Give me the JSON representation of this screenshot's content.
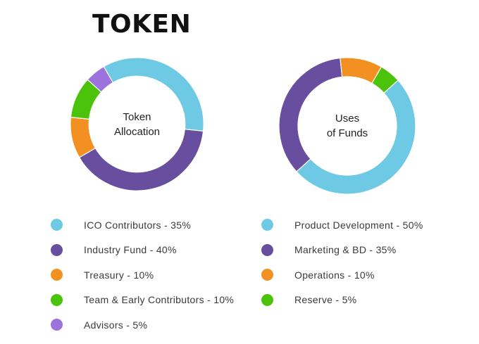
{
  "page": {
    "title": "TOKEN"
  },
  "chart_data": [
    {
      "type": "pie",
      "variant": "donut",
      "center_label": [
        "Token",
        "Allocation"
      ],
      "start_angle_deg": -30,
      "slices": [
        {
          "label": "ICO Contributors - 35%",
          "value": 35,
          "color": "#6ecae4"
        },
        {
          "label": "Industry Fund - 40%",
          "value": 40,
          "color": "#684e9f"
        },
        {
          "label": "Treasury - 10%",
          "value": 10,
          "color": "#f29122"
        },
        {
          "label": "Team & Early Contributors - 10%",
          "value": 10,
          "color": "#4bc30b"
        },
        {
          "label": "Advisors - 5%",
          "value": 5,
          "color": "#9c72dc"
        }
      ]
    },
    {
      "type": "pie",
      "variant": "donut",
      "center_label": [
        "Uses",
        "of Funds"
      ],
      "start_angle_deg": 48,
      "slices": [
        {
          "label": "Product Development - 50%",
          "value": 50,
          "color": "#6ecae4"
        },
        {
          "label": "Marketing & BD - 35%",
          "value": 35,
          "color": "#684e9f"
        },
        {
          "label": "Operations - 10%",
          "value": 10,
          "color": "#f29122"
        },
        {
          "label": "Reserve - 5%",
          "value": 5,
          "color": "#4bc30b"
        }
      ]
    }
  ]
}
